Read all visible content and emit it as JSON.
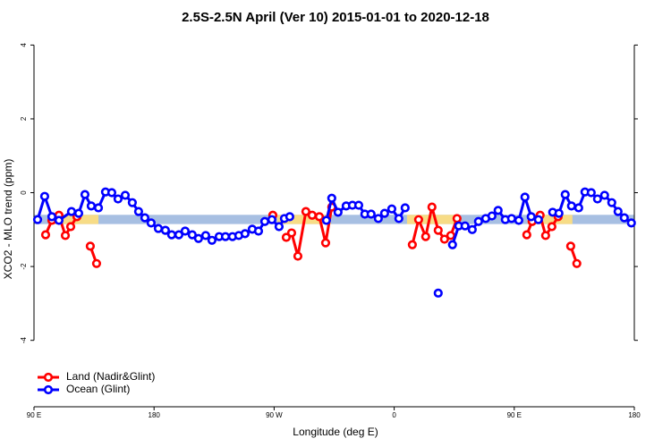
{
  "chart_data": {
    "type": "line",
    "title": "2.5S-2.5N April (Ver 10)   2015-01-01 to 2020-12-18",
    "xlabel": "Longitude (deg E)",
    "ylabel": "XCO2 - MLO trend (ppm)",
    "xlim": [
      90,
      540
    ],
    "ylim": [
      -5.8,
      4.3
    ],
    "xticks": [
      {
        "value": 90,
        "label": "90 E"
      },
      {
        "value": 180,
        "label": "180"
      },
      {
        "value": 270,
        "label": "90 W"
      },
      {
        "value": 360,
        "label": "0"
      },
      {
        "value": 450,
        "label": "90 E"
      },
      {
        "value": 540,
        "label": "180"
      }
    ],
    "yticks": [
      -4,
      -2,
      0,
      2,
      4
    ],
    "band": {
      "ylim": [
        -0.85,
        -0.6
      ],
      "color": "#a7bfe2"
    },
    "highlight_ranges": [
      [
        104.7,
        138.3
      ],
      [
        272.3,
        312.6
      ],
      [
        369.6,
        406.4
      ],
      [
        460,
        493.6
      ]
    ],
    "highlight_color": "#f7dc86",
    "legend": "bottom-left",
    "series": [
      {
        "name": "Land (Nadir&Glint)",
        "color": "#ff0000",
        "x": [
          98.7,
          103.4,
          108.7,
          113.5,
          117.5,
          122.2,
          null,
          132.2,
          136.9,
          null,
          269.0,
          null,
          279.1,
          283.1,
          287.8,
          293.8,
          298.5,
          303.9,
          308.6,
          313.2,
          null,
          373.6,
          378.3,
          383.6,
          388.3,
          393.0,
          397.7,
          402.4,
          407.1,
          null,
          459.4,
          463.4,
          469.4,
          473.5,
          478.2,
          482.9,
          null,
          492.3,
          496.9
        ],
        "values": [
          -1.14,
          -0.75,
          -0.61,
          -1.16,
          -0.92,
          -0.65,
          null,
          -1.45,
          -1.92,
          null,
          -0.61,
          null,
          -1.21,
          -1.09,
          -1.72,
          -0.51,
          -0.61,
          -0.65,
          -1.36,
          -0.39,
          null,
          -1.41,
          -0.73,
          -1.19,
          -0.39,
          -1.02,
          -1.26,
          -1.16,
          -0.7,
          null,
          -1.14,
          -0.78,
          -0.61,
          -1.16,
          -0.92,
          -0.65,
          null,
          -1.45,
          -1.92
        ]
      },
      {
        "name": "Ocean (Glint)",
        "color": "#0000ff",
        "x": [
          92.7,
          98.0,
          103.4,
          108.7,
          118.1,
          123.5,
          128.2,
          132.9,
          138.3,
          143.6,
          148.3,
          153.0,
          158.4,
          163.7,
          168.4,
          173.1,
          177.8,
          183.2,
          188.5,
          193.2,
          198.6,
          203.3,
          208.6,
          213.3,
          218.7,
          223.4,
          228.8,
          233.5,
          238.8,
          243.5,
          248.2,
          253.6,
          258.3,
          263.0,
          268.3,
          273.7,
          277.7,
          281.7,
          null,
          309.2,
          313.2,
          317.9,
          324.0,
          328.7,
          333.4,
          338.0,
          342.7,
          348.1,
          352.8,
          358.2,
          363.5,
          368.2,
          null,
          393.0,
          null,
          403.7,
          408.4,
          413.1,
          418.5,
          423.2,
          428.6,
          433.3,
          437.9,
          443.3,
          448.0,
          453.4,
          458.0,
          462.7,
          468.1,
          null,
          478.8,
          483.5,
          488.2,
          492.9,
          498.3,
          503.0,
          507.7,
          512.4,
          517.7,
          523.1,
          527.8,
          532.5,
          537.8
        ],
        "values": [
          -0.73,
          -0.1,
          -0.65,
          -0.75,
          -0.51,
          -0.56,
          -0.05,
          -0.36,
          -0.41,
          0.02,
          0.0,
          -0.17,
          -0.07,
          -0.27,
          -0.51,
          -0.68,
          -0.82,
          -0.97,
          -1.02,
          -1.14,
          -1.14,
          -1.04,
          -1.14,
          -1.24,
          -1.16,
          -1.29,
          -1.19,
          -1.19,
          -1.19,
          -1.16,
          -1.11,
          -0.99,
          -1.04,
          -0.78,
          -0.73,
          -0.92,
          -0.7,
          -0.65,
          null,
          -0.75,
          -0.15,
          -0.53,
          -0.36,
          -0.34,
          -0.34,
          -0.58,
          -0.58,
          -0.7,
          -0.56,
          -0.44,
          -0.7,
          -0.41,
          null,
          -2.72,
          null,
          -1.41,
          -0.9,
          -0.9,
          -1.0,
          -0.78,
          -0.7,
          -0.63,
          -0.48,
          -0.73,
          -0.7,
          -0.75,
          -0.12,
          -0.65,
          -0.73,
          null,
          -0.53,
          -0.56,
          -0.05,
          -0.36,
          -0.41,
          0.02,
          0.0,
          -0.17,
          -0.07,
          -0.27,
          -0.51,
          -0.68,
          -0.82
        ]
      }
    ]
  }
}
